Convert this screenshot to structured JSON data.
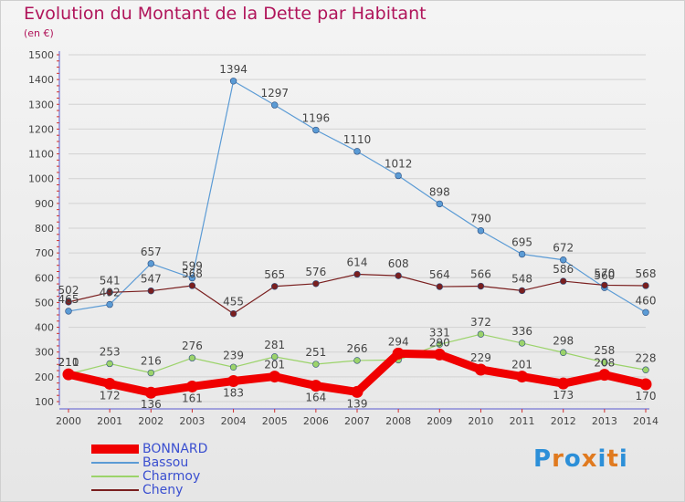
{
  "title": "Evolution du Montant de la Dette par Habitant",
  "subtitle": "(en €)",
  "logo": {
    "letters": [
      "P",
      "r",
      "o",
      "x",
      "i",
      "t",
      "i"
    ],
    "colors": [
      "#2c8fd8",
      "#e07a1f",
      "#2c8fd8",
      "#e07a1f",
      "#2c8fd8",
      "#e07a1f",
      "#2c8fd8"
    ]
  },
  "chart_data": {
    "type": "line",
    "title": "Evolution du Montant de la Dette par Habitant",
    "ylabel": "(en €)",
    "xlabel": "",
    "x": [
      "2000",
      "2001",
      "2002",
      "2003",
      "2004",
      "2005",
      "2006",
      "2007",
      "2008",
      "2009",
      "2010",
      "2011",
      "2012",
      "2013",
      "2014"
    ],
    "ylim": [
      100,
      1500
    ],
    "yticks": [
      100,
      200,
      300,
      400,
      500,
      600,
      700,
      800,
      900,
      1000,
      1100,
      1200,
      1300,
      1400,
      1500
    ],
    "grid": true,
    "legend": "bottom-left",
    "series": [
      {
        "name": "BONNARD",
        "color": "#f00000",
        "values": [
          210,
          172,
          136,
          161,
          183,
          201,
          164,
          139,
          294,
          290,
          229,
          201,
          173,
          208,
          170
        ]
      },
      {
        "name": "Bassou",
        "color": "#5b9bd5",
        "values": [
          465,
          492,
          657,
          599,
          1394,
          1297,
          1196,
          1110,
          1012,
          898,
          790,
          695,
          672,
          560,
          460
        ]
      },
      {
        "name": "Charmoy",
        "color": "#9bd36a",
        "values": [
          211,
          253,
          216,
          276,
          239,
          281,
          251,
          266,
          268,
          331,
          372,
          336,
          298,
          258,
          228
        ]
      },
      {
        "name": "Cheny",
        "color": "#7a1f1f",
        "values": [
          502,
          541,
          547,
          568,
          455,
          565,
          576,
          614,
          608,
          564,
          566,
          548,
          586,
          570,
          568
        ]
      }
    ],
    "point_labels": [
      {
        "series": "BONNARD",
        "labels": [
          "210",
          "172",
          "136",
          "161",
          "183",
          "201",
          "164",
          "139",
          "294",
          "290",
          "229",
          "201",
          "173",
          "208",
          "170"
        ]
      },
      {
        "series": "Bassou",
        "labels": [
          "465",
          "492",
          "657",
          "599",
          "1394",
          "1297",
          "1196",
          "1110",
          "1012",
          "898",
          "790",
          "695",
          "672",
          "560",
          "460"
        ]
      },
      {
        "series": "Charmoy",
        "labels": [
          "211",
          "253",
          "216",
          "276",
          "239",
          "281",
          "251",
          "266",
          "",
          "331",
          "372",
          "336",
          "298",
          "258",
          "228"
        ]
      },
      {
        "series": "Cheny",
        "labels": [
          "502",
          "541",
          "547",
          "568",
          "455",
          "565",
          "576",
          "614",
          "608",
          "564",
          "566",
          "548",
          "586",
          "570",
          "568"
        ]
      }
    ]
  }
}
